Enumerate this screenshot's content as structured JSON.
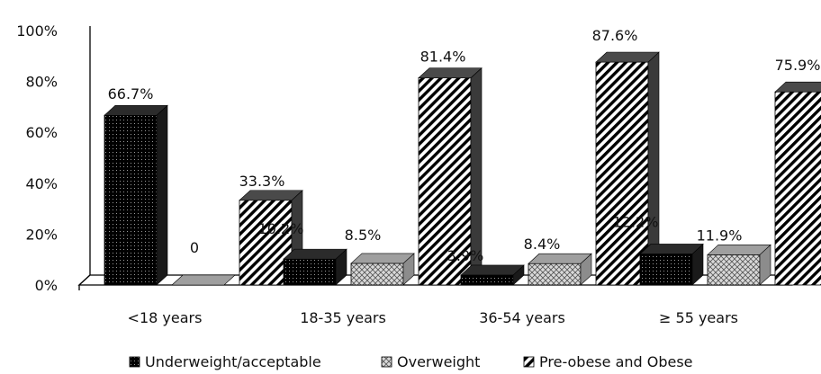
{
  "chart_data": {
    "type": "bar",
    "categories": [
      "<18 years",
      "18-35 years",
      "36-54 years",
      "≥ 55 years"
    ],
    "series": [
      {
        "name": "Underweight/acceptable",
        "values": [
          66.7,
          10.2,
          3.9,
          12.2
        ],
        "labels": [
          "66.7%",
          "10.2%",
          "3.9%",
          "12.2%"
        ],
        "pattern": "dots"
      },
      {
        "name": "Overweight",
        "values": [
          0,
          8.5,
          8.4,
          11.9
        ],
        "labels": [
          "0",
          "8.5%",
          "8.4%",
          "11.9%"
        ],
        "pattern": "crosshatch"
      },
      {
        "name": "Pre-obese and Obese",
        "values": [
          33.3,
          81.4,
          87.6,
          75.9
        ],
        "labels": [
          "33.3%",
          "81.4%",
          "87.6%",
          "75.9%"
        ],
        "pattern": "diagonal"
      }
    ],
    "y_ticks": [
      "0%",
      "20%",
      "40%",
      "60%",
      "80%",
      "100%"
    ],
    "ylim": [
      0,
      100
    ],
    "legend_position": "bottom",
    "grid": false
  }
}
